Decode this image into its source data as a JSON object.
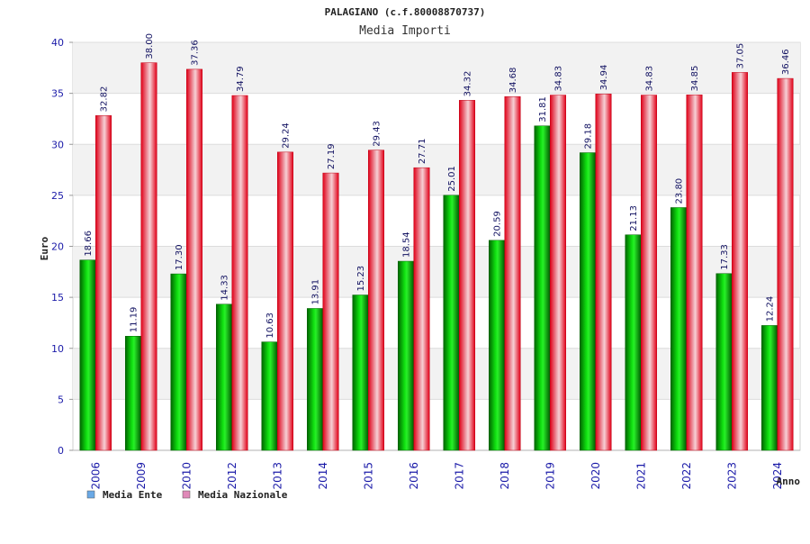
{
  "chart_data": {
    "type": "bar",
    "title": "PALAGIANO (c.f.80008870737)",
    "subtitle": "Media Importi",
    "xlabel": "Anno",
    "ylabel": "Euro",
    "ylim": [
      0,
      40
    ],
    "yticks": [
      0,
      5,
      10,
      15,
      20,
      25,
      30,
      35,
      40
    ],
    "grid": true,
    "legend_position": "bottom-left",
    "categories": [
      "2006",
      "2009",
      "2010",
      "2012",
      "2013",
      "2014",
      "2015",
      "2016",
      "2017",
      "2018",
      "2019",
      "2020",
      "2021",
      "2022",
      "2023",
      "2024"
    ],
    "series": [
      {
        "name": "Media Ente",
        "color": "#00b400",
        "legend_color": "#6aa9e6",
        "values": [
          18.66,
          11.19,
          17.3,
          14.33,
          10.63,
          13.91,
          15.23,
          18.54,
          25.01,
          20.59,
          31.81,
          29.18,
          21.13,
          23.8,
          17.33,
          12.24
        ],
        "labels": [
          "18.66",
          "11.19",
          "17.30",
          "14.33",
          "10.63",
          "13.91",
          "15.23",
          "18.54",
          "25.01",
          "20.59",
          "31.81",
          "29.18",
          "21.13",
          "23.80",
          "17.33",
          "12.24"
        ]
      },
      {
        "name": "Media Nazionale",
        "color": "#e8001c",
        "legend_color": "#e089b8",
        "values": [
          32.82,
          38.0,
          37.36,
          34.79,
          29.24,
          27.19,
          29.43,
          27.71,
          34.32,
          34.68,
          34.83,
          34.94,
          34.83,
          34.85,
          37.05,
          36.46
        ],
        "labels": [
          "32.82",
          "38.00",
          "37.36",
          "34.79",
          "29.24",
          "27.19",
          "29.43",
          "27.71",
          "34.32",
          "34.68",
          "34.83",
          "34.94",
          "34.83",
          "34.85",
          "37.05",
          "36.46"
        ]
      }
    ]
  }
}
